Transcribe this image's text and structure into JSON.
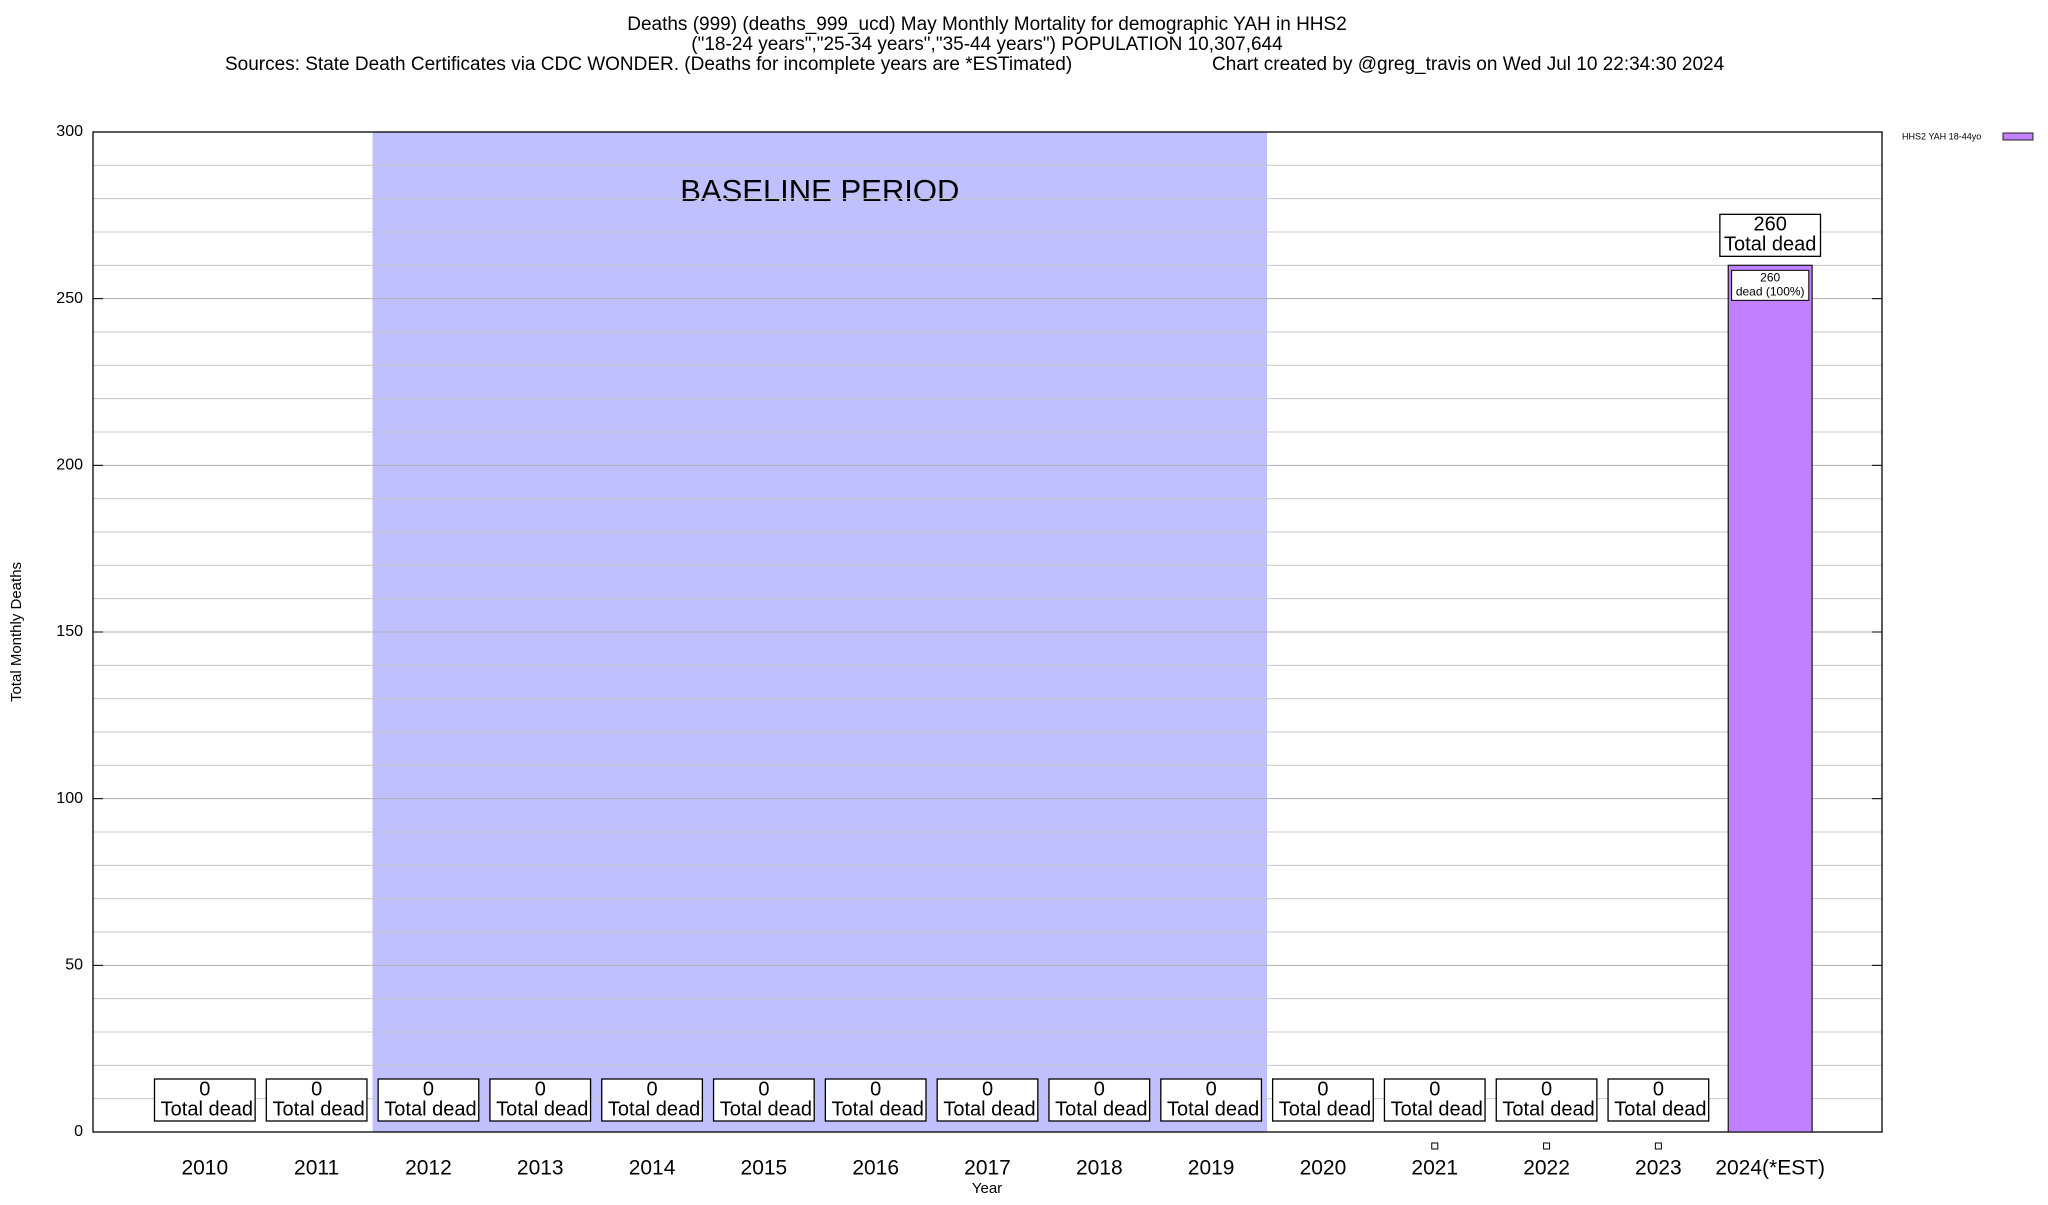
{
  "chart_data": {
    "type": "bar",
    "title": "Deaths (999) (deaths_999_ucd) May Monthly Mortality for demographic YAH in HHS2",
    "subtitle": "(\"18-24 years\",\"25-34 years\",\"35-44 years\") POPULATION 10,307,644",
    "sources": "Sources: State Death Certificates via CDC WONDER. (Deaths for incomplete years are *ESTimated)",
    "credit": "Chart created by @greg_travis on Wed Jul 10 22:34:30 2024",
    "x_label": "Year",
    "y_label": "Total Monthly Deaths",
    "categories": [
      "2010",
      "2011",
      "2012",
      "2013",
      "2014",
      "2015",
      "2016",
      "2017",
      "2018",
      "2019",
      "2020",
      "2021",
      "2022",
      "2023",
      "2024(*EST)"
    ],
    "series": [
      {
        "name": "HHS2 YAH 18-44yo",
        "color": "#c080ff",
        "values": [
          0,
          0,
          0,
          0,
          0,
          0,
          0,
          0,
          0,
          0,
          0,
          0,
          0,
          0,
          260
        ]
      }
    ],
    "total_label": "Total dead",
    "bar_inner_label": "dead (100%)",
    "baseline": {
      "label": "BASELINE PERIOD",
      "start": "2012",
      "end": "2019",
      "color": "#c0c0ff"
    },
    "ylim": [
      0,
      300
    ],
    "yticks": [
      0,
      50,
      100,
      150,
      200,
      250,
      300
    ],
    "minor_yticks": [
      10,
      20,
      30,
      40,
      60,
      70,
      80,
      90,
      110,
      120,
      130,
      140,
      160,
      170,
      180,
      190,
      210,
      220,
      230,
      240,
      260,
      270,
      280,
      290
    ],
    "grid": true,
    "legend": "top-right"
  }
}
